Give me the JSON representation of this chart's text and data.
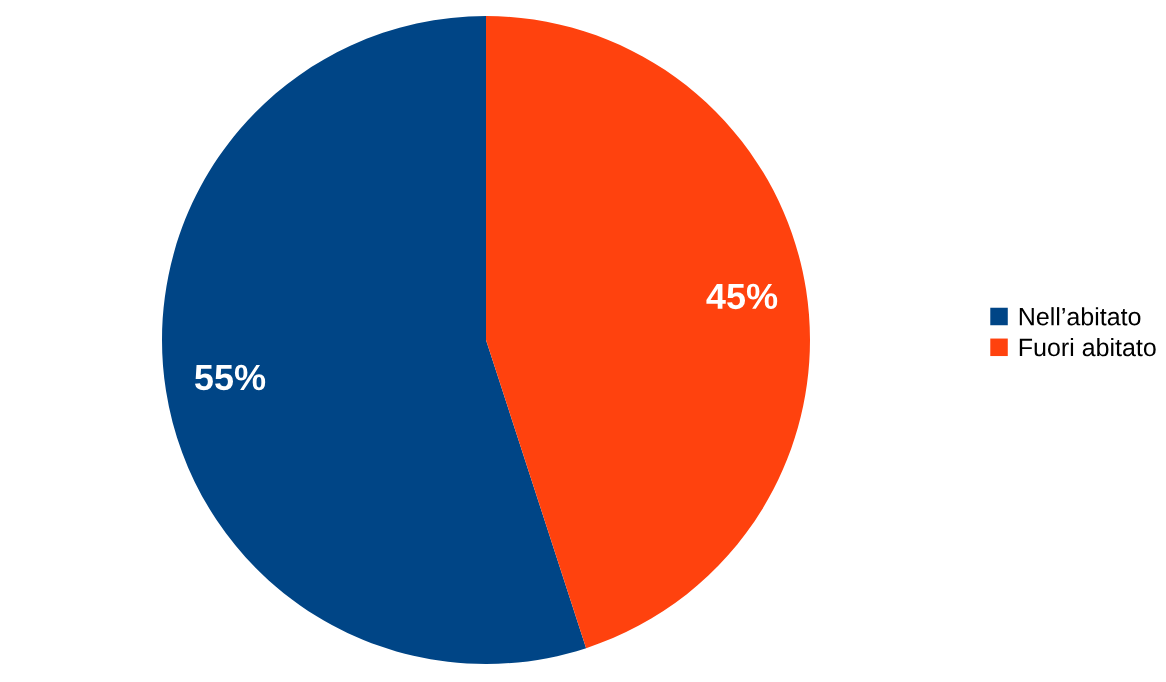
{
  "chart_data": {
    "type": "pie",
    "categories": [
      "Nell’abitato",
      "Fuori abitato"
    ],
    "values": [
      55,
      45
    ],
    "colors": [
      "#004586",
      "#ff420e"
    ],
    "value_labels": [
      "55%",
      "45%"
    ],
    "legend": "right"
  }
}
